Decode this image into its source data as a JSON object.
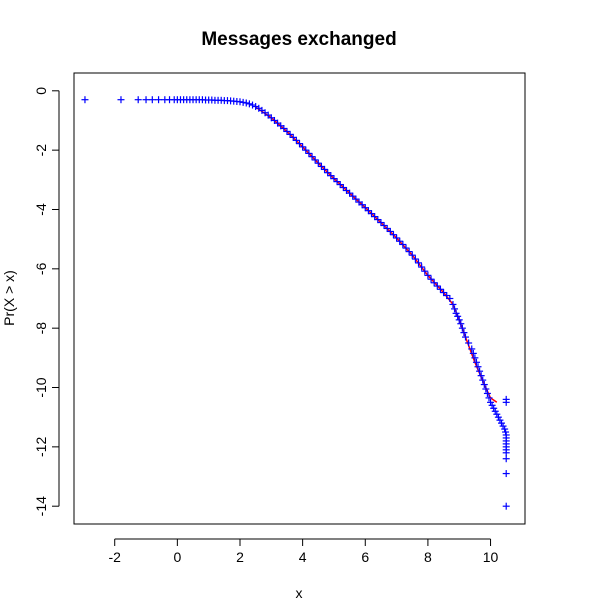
{
  "chart_data": {
    "type": "scatter",
    "title": "Messages exchanged",
    "xlabel": "x",
    "ylabel": "Pr(X > x)",
    "xlim": [
      -3.3,
      11.1
    ],
    "ylim": [
      -14.6,
      0.6
    ],
    "x_ticks": [
      -2,
      0,
      2,
      4,
      6,
      8,
      10
    ],
    "y_ticks": [
      0,
      -2,
      -4,
      -6,
      -8,
      -10,
      -12,
      -14
    ],
    "x_tick_labels": [
      "-2",
      "0",
      "2",
      "4",
      "6",
      "8",
      "10"
    ],
    "y_tick_labels": [
      "0",
      "-2",
      "-4",
      "-6",
      "-8",
      "-10",
      "-12",
      "-14"
    ],
    "grid": false,
    "marker": "+",
    "series": [
      {
        "color": "#0000ff",
        "marker": "+",
        "x": [
          -2.95,
          -1.8,
          -1.25,
          -1.0,
          -0.8,
          -0.6,
          -0.4,
          -0.25,
          -0.1,
          0.0,
          0.1,
          0.2,
          0.3,
          0.4,
          0.5,
          0.6,
          0.7,
          0.8,
          0.9,
          1.0,
          1.1,
          1.2,
          1.3,
          1.4,
          1.5,
          1.6,
          1.7,
          1.8,
          1.9,
          2.0,
          2.1,
          2.2,
          2.3,
          2.4,
          2.5,
          2.6,
          2.7,
          2.8,
          2.9,
          3.0,
          3.1,
          3.2,
          3.3,
          3.4,
          3.5,
          3.6,
          3.7,
          3.8,
          3.9,
          4.0,
          4.1,
          4.2,
          4.3,
          4.4,
          4.5,
          4.6,
          4.7,
          4.8,
          4.9,
          5.0,
          5.1,
          5.2,
          5.3,
          5.4,
          5.5,
          5.6,
          5.7,
          5.8,
          5.9,
          6.0,
          6.1,
          6.2,
          6.3,
          6.4,
          6.5,
          6.6,
          6.7,
          6.8,
          6.9,
          7.0,
          7.1,
          7.2,
          7.3,
          7.4,
          7.5,
          7.6,
          7.7,
          7.8,
          7.9,
          8.0,
          8.1,
          8.2,
          8.3,
          8.4,
          8.5,
          8.6,
          8.7,
          8.8,
          8.85,
          8.9,
          8.95,
          9.0,
          9.05,
          9.1,
          9.15,
          9.2,
          9.3,
          9.4,
          9.45,
          9.5,
          9.55,
          9.6,
          9.65,
          9.7,
          9.75,
          9.8,
          9.85,
          9.9,
          9.95,
          10.0,
          10.05,
          10.1,
          10.15,
          10.2,
          10.25,
          10.3,
          10.35,
          10.4,
          10.45,
          10.48,
          10.5,
          10.5,
          10.5,
          10.5,
          10.5,
          10.5,
          10.5,
          10.5,
          10.5,
          10.5,
          10.5,
          10.5
        ],
        "y": [
          -0.3,
          -0.3,
          -0.3,
          -0.3,
          -0.3,
          -0.3,
          -0.3,
          -0.3,
          -0.3,
          -0.3,
          -0.3,
          -0.3,
          -0.3,
          -0.3,
          -0.3,
          -0.3,
          -0.3,
          -0.3,
          -0.31,
          -0.31,
          -0.31,
          -0.32,
          -0.32,
          -0.32,
          -0.33,
          -0.33,
          -0.34,
          -0.35,
          -0.36,
          -0.37,
          -0.39,
          -0.41,
          -0.44,
          -0.48,
          -0.53,
          -0.59,
          -0.66,
          -0.74,
          -0.82,
          -0.91,
          -1.0,
          -1.09,
          -1.18,
          -1.27,
          -1.37,
          -1.47,
          -1.57,
          -1.67,
          -1.78,
          -1.89,
          -2.0,
          -2.11,
          -2.22,
          -2.33,
          -2.44,
          -2.55,
          -2.65,
          -2.76,
          -2.86,
          -2.96,
          -3.06,
          -3.16,
          -3.26,
          -3.36,
          -3.45,
          -3.55,
          -3.65,
          -3.75,
          -3.84,
          -3.94,
          -4.04,
          -4.14,
          -4.24,
          -4.34,
          -4.44,
          -4.54,
          -4.64,
          -4.74,
          -4.85,
          -4.96,
          -5.07,
          -5.18,
          -5.3,
          -5.42,
          -5.54,
          -5.67,
          -5.8,
          -5.94,
          -6.08,
          -6.22,
          -6.35,
          -6.47,
          -6.58,
          -6.69,
          -6.8,
          -6.9,
          -7.0,
          -7.2,
          -7.35,
          -7.5,
          -7.6,
          -7.72,
          -7.85,
          -8.0,
          -8.15,
          -8.3,
          -8.5,
          -8.7,
          -8.85,
          -9.0,
          -9.15,
          -9.3,
          -9.45,
          -9.6,
          -9.75,
          -9.9,
          -10.05,
          -10.2,
          -10.35,
          -10.5,
          -10.6,
          -10.7,
          -10.8,
          -10.9,
          -11.0,
          -11.1,
          -11.2,
          -11.3,
          -11.4,
          -11.5,
          -11.6,
          -11.7,
          -11.8,
          -11.9,
          -12.0,
          -12.1,
          -12.2,
          -12.4,
          -12.9,
          -14.0,
          -10.4,
          -10.5
        ]
      },
      {
        "color": "#ff0000",
        "style": "line",
        "x": [
          2.5,
          3.0,
          3.5,
          4.0,
          4.5,
          5.0,
          5.5,
          6.0,
          6.5,
          7.0,
          7.5,
          8.0,
          8.5,
          8.8,
          9.0,
          9.2,
          9.5,
          9.8,
          10.0,
          10.2
        ],
        "y": [
          -0.55,
          -0.91,
          -1.37,
          -1.89,
          -2.44,
          -2.96,
          -3.45,
          -3.94,
          -4.44,
          -4.96,
          -5.54,
          -6.22,
          -6.8,
          -7.2,
          -7.72,
          -8.3,
          -9.15,
          -9.9,
          -10.35,
          -10.5
        ]
      }
    ]
  }
}
